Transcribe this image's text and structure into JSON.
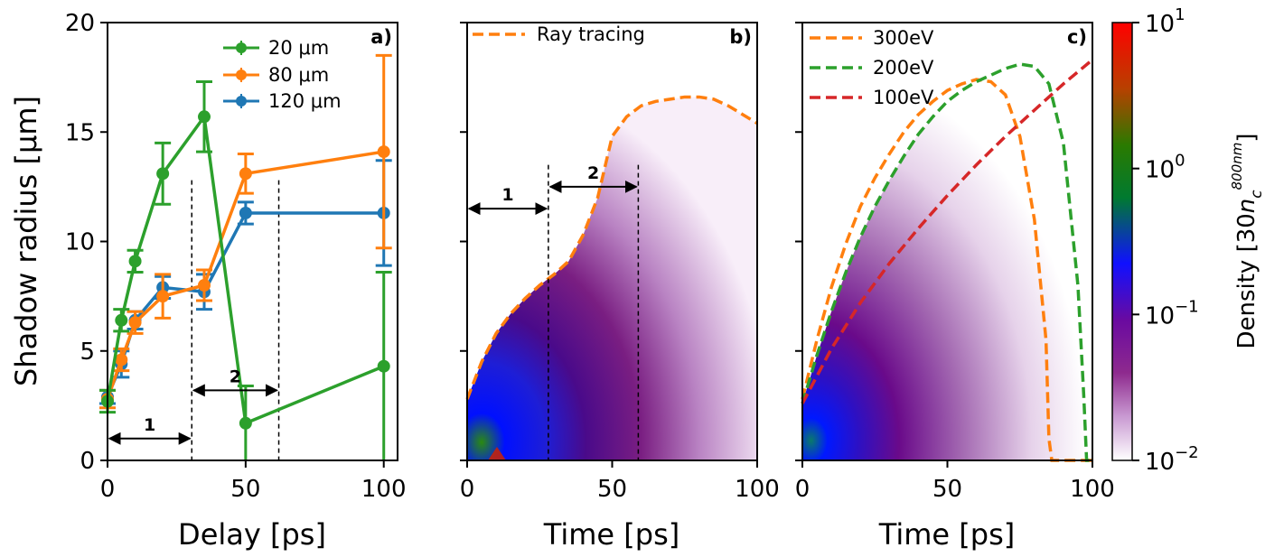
{
  "chart_data": [
    {
      "type": "line",
      "panel_label": "a)",
      "xlabel": "Delay [ps]",
      "ylabel": "Shadow radius [μm]",
      "xlim": [
        0,
        105
      ],
      "ylim": [
        0,
        20
      ],
      "x_ticks": [
        "0",
        "50",
        "100"
      ],
      "y_ticks": [
        "0",
        "5",
        "10",
        "15",
        "20"
      ],
      "legend_position": "top-right",
      "series": [
        {
          "name": "20 μm",
          "color": "#2ca02c",
          "x": [
            0,
            5,
            10,
            20,
            35,
            50,
            100
          ],
          "y": [
            2.7,
            6.4,
            9.1,
            13.1,
            15.7,
            1.7,
            4.3
          ],
          "err": [
            0.5,
            0.5,
            0.5,
            1.4,
            1.6,
            1.7,
            4.3
          ]
        },
        {
          "name": "80 μm",
          "color": "#ff7f0e",
          "x": [
            0,
            5,
            10,
            20,
            35,
            50,
            100
          ],
          "y": [
            2.8,
            4.6,
            6.3,
            7.5,
            8.0,
            13.1,
            14.1
          ],
          "err": [
            0.4,
            0.5,
            0.5,
            1.0,
            0.7,
            0.9,
            4.4
          ]
        },
        {
          "name": "120 μm",
          "color": "#1f77b4",
          "x": [
            0,
            5,
            10,
            20,
            35,
            50,
            100
          ],
          "y": [
            2.9,
            4.4,
            6.4,
            7.9,
            7.7,
            11.3,
            11.3
          ],
          "err": [
            0.3,
            0.6,
            0.4,
            0.5,
            0.8,
            0.5,
            2.4
          ]
        }
      ],
      "annotations": [
        {
          "text": "1",
          "x_start": 0,
          "x_end": 30.5,
          "y": 1
        },
        {
          "text": "2",
          "x_start": 30.5,
          "x_end": 62,
          "y": 3.2
        }
      ],
      "vlines": [
        30.5,
        62
      ]
    },
    {
      "type": "heatmap",
      "panel_label": "b)",
      "xlabel": "Time [ps]",
      "xlim": [
        0,
        100
      ],
      "ylim": [
        0,
        20
      ],
      "x_ticks": [
        "0",
        "50",
        "100"
      ],
      "legend_position": "top-left",
      "series": [
        {
          "name": "Ray tracing",
          "color": "#ff7f0e",
          "style": "dashed",
          "x": [
            0,
            5,
            10,
            15,
            20,
            25,
            30,
            35,
            40,
            45,
            50,
            55,
            60,
            65,
            70,
            75,
            80,
            85,
            90,
            95,
            100
          ],
          "y": [
            2.8,
            4.5,
            5.8,
            6.7,
            7.4,
            8.0,
            8.5,
            9.1,
            10.3,
            12.0,
            14.8,
            15.7,
            16.2,
            16.4,
            16.5,
            16.6,
            16.6,
            16.5,
            16.2,
            15.8,
            15.4
          ]
        }
      ],
      "annotations": [
        {
          "text": "1",
          "x_start": 0,
          "x_end": 28,
          "y": 11.5
        },
        {
          "text": "2",
          "x_start": 28,
          "x_end": 59,
          "y": 12.5
        }
      ],
      "vlines": [
        28,
        59
      ]
    },
    {
      "type": "heatmap",
      "panel_label": "c)",
      "xlabel": "Time [ps]",
      "xlim": [
        0,
        100
      ],
      "ylim": [
        0,
        20
      ],
      "x_ticks": [
        "0",
        "50",
        "100"
      ],
      "legend_position": "top-left",
      "series": [
        {
          "name": "300eV",
          "color": "#ff7f0e",
          "style": "dashed",
          "x": [
            0,
            5,
            10,
            15,
            20,
            25,
            30,
            35,
            40,
            45,
            50,
            55,
            60,
            65,
            70,
            75,
            80,
            84,
            85,
            86,
            90,
            95,
            100
          ],
          "y": [
            2.8,
            5.5,
            7.9,
            9.9,
            11.6,
            12.9,
            14.0,
            15.0,
            15.8,
            16.4,
            16.9,
            17.2,
            17.4,
            17.3,
            16.7,
            14.8,
            11.0,
            5.5,
            1.0,
            0,
            0,
            0,
            0
          ]
        },
        {
          "name": "200eV",
          "color": "#2ca02c",
          "style": "dashed",
          "x": [
            0,
            5,
            10,
            15,
            20,
            25,
            30,
            35,
            40,
            45,
            50,
            55,
            60,
            65,
            70,
            75,
            80,
            85,
            90,
            95,
            97,
            98,
            100
          ],
          "y": [
            2.6,
            4.8,
            6.8,
            8.6,
            10.2,
            11.6,
            12.8,
            13.9,
            14.9,
            15.7,
            16.4,
            16.9,
            17.3,
            17.6,
            17.9,
            18.1,
            18.0,
            17.2,
            14.5,
            8.0,
            3.0,
            0,
            0
          ]
        },
        {
          "name": "100eV",
          "color": "#d62728",
          "style": "dashed",
          "x": [
            0,
            10,
            20,
            30,
            40,
            50,
            60,
            70,
            80,
            90,
            100
          ],
          "y": [
            2.6,
            5.1,
            7.2,
            9.0,
            10.6,
            12.1,
            13.5,
            14.8,
            16.0,
            17.2,
            18.3
          ]
        }
      ]
    }
  ],
  "colorbar": {
    "label": "Density [30",
    "label_sym": "n",
    "label_sub": "c",
    "label_sup": "800nm",
    "label_close": "]",
    "tick_base": "10",
    "ticks": [
      {
        "exp": "1",
        "value": 10
      },
      {
        "exp": "0",
        "value": 1
      },
      {
        "exp": "−1",
        "value": 0.1
      },
      {
        "exp": "−2",
        "value": 0.01
      }
    ],
    "colors": [
      "#ff0000",
      "#c04000",
      "#2a7a00",
      "#008800",
      "#0000ff",
      "#5a1070",
      "#7a1e82",
      "#b27bbf",
      "#ffffff"
    ]
  }
}
